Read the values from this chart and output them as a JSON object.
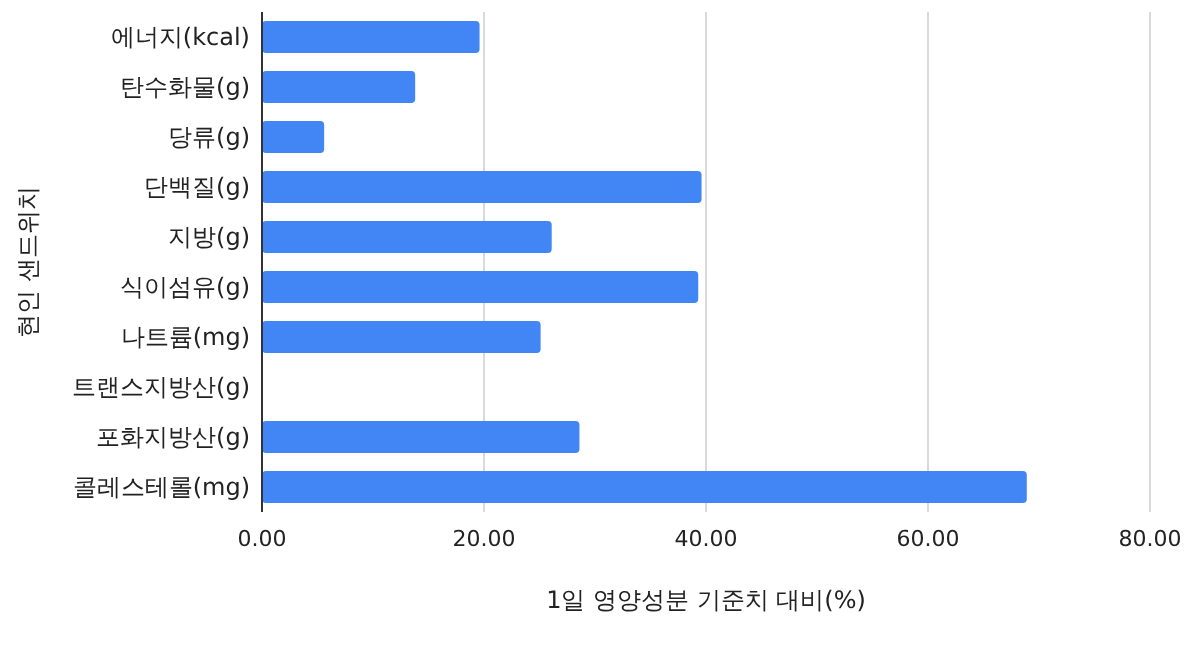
{
  "chart_data": {
    "type": "bar",
    "orientation": "horizontal",
    "categories": [
      "에너지(kcal)",
      "탄수화물(g)",
      "당류(g)",
      "단백질(g)",
      "지방(g)",
      "식이섬유(g)",
      "나트륨(mg)",
      "트랜스지방산(g)",
      "포화지방산(g)",
      "콜레스테롤(mg)"
    ],
    "values": [
      19.6,
      13.8,
      5.6,
      39.6,
      26.1,
      39.3,
      25.1,
      0,
      28.6,
      68.9
    ],
    "color": "#4285f4",
    "xlim": [
      0,
      80
    ],
    "xticks": [
      {
        "value": 0,
        "label": "0.00"
      },
      {
        "value": 20,
        "label": "20.00"
      },
      {
        "value": 40,
        "label": "40.00"
      },
      {
        "value": 60,
        "label": "60.00"
      },
      {
        "value": 80,
        "label": "80.00"
      }
    ],
    "xlabel": "1일 영양성분 기준치 대비(%)",
    "ylabel": "현인 샌드위치",
    "grid": "x"
  }
}
